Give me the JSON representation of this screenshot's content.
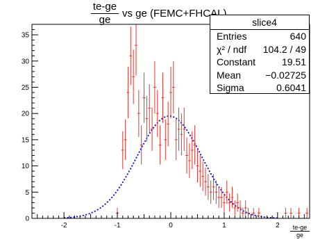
{
  "title": {
    "fraction_numerator": "te-ge",
    "fraction_denominator": "ge",
    "text": "vs ge (FEMC+FHCAL)"
  },
  "stats_box": {
    "title": "slice4",
    "rows": [
      {
        "key": "Entries",
        "value": "640"
      },
      {
        "key": "χ² / ndf",
        "value": "104.2 / 49"
      },
      {
        "key": "Constant",
        "value": "19.51"
      },
      {
        "key": "Mean",
        "value": "−0.02725"
      },
      {
        "key": "Sigma",
        "value": "0.6041"
      }
    ]
  },
  "x_axis_label": {
    "numerator": "te-ge",
    "denominator": "ge"
  },
  "colors": {
    "histogram": "#e8342a",
    "fit": "#0000e0",
    "axes": "#000000"
  },
  "chart_data": {
    "type": "histogram_with_fit",
    "xlim": [
      -2.6,
      2.6
    ],
    "ylim": [
      0,
      37
    ],
    "x_ticks": [
      -2,
      -1,
      0,
      1,
      2
    ],
    "y_ticks": [
      0,
      5,
      10,
      15,
      20,
      25,
      30,
      35
    ],
    "bin_width": 0.05,
    "bins": [
      {
        "x": -1.0,
        "y": 1
      },
      {
        "x": -0.9,
        "y": 13
      },
      {
        "x": -0.85,
        "y": 15
      },
      {
        "x": -0.8,
        "y": 24
      },
      {
        "x": -0.75,
        "y": 31
      },
      {
        "x": -0.7,
        "y": 27
      },
      {
        "x": -0.65,
        "y": 33
      },
      {
        "x": -0.6,
        "y": 20
      },
      {
        "x": -0.55,
        "y": 14
      },
      {
        "x": -0.5,
        "y": 23
      },
      {
        "x": -0.45,
        "y": 19
      },
      {
        "x": -0.4,
        "y": 21
      },
      {
        "x": -0.35,
        "y": 17
      },
      {
        "x": -0.3,
        "y": 25
      },
      {
        "x": -0.25,
        "y": 20
      },
      {
        "x": -0.2,
        "y": 14
      },
      {
        "x": -0.15,
        "y": 23
      },
      {
        "x": -0.1,
        "y": 15
      },
      {
        "x": -0.05,
        "y": 18
      },
      {
        "x": 0.0,
        "y": 24
      },
      {
        "x": 0.05,
        "y": 25
      },
      {
        "x": 0.1,
        "y": 15
      },
      {
        "x": 0.15,
        "y": 17
      },
      {
        "x": 0.2,
        "y": 16
      },
      {
        "x": 0.25,
        "y": 17
      },
      {
        "x": 0.3,
        "y": 12
      },
      {
        "x": 0.35,
        "y": 11
      },
      {
        "x": 0.4,
        "y": 13
      },
      {
        "x": 0.45,
        "y": 14
      },
      {
        "x": 0.5,
        "y": 10
      },
      {
        "x": 0.55,
        "y": 9
      },
      {
        "x": 0.6,
        "y": 8
      },
      {
        "x": 0.65,
        "y": 7
      },
      {
        "x": 0.7,
        "y": 6
      },
      {
        "x": 0.75,
        "y": 5
      },
      {
        "x": 0.8,
        "y": 6
      },
      {
        "x": 0.85,
        "y": 5
      },
      {
        "x": 0.9,
        "y": 4
      },
      {
        "x": 0.95,
        "y": 4
      },
      {
        "x": 1.0,
        "y": 3
      },
      {
        "x": 1.05,
        "y": 5
      },
      {
        "x": 1.1,
        "y": 3
      },
      {
        "x": 1.15,
        "y": 4
      },
      {
        "x": 1.2,
        "y": 2
      },
      {
        "x": 1.25,
        "y": 3
      },
      {
        "x": 1.3,
        "y": 2
      },
      {
        "x": 1.35,
        "y": 1
      },
      {
        "x": 1.4,
        "y": 2
      },
      {
        "x": 1.45,
        "y": 1
      },
      {
        "x": 1.55,
        "y": 1
      },
      {
        "x": 1.65,
        "y": 1
      },
      {
        "x": 2.15,
        "y": 1
      },
      {
        "x": 2.25,
        "y": 1
      },
      {
        "x": 2.4,
        "y": 1
      },
      {
        "x": 2.55,
        "y": 1
      }
    ],
    "fit": {
      "type": "gaussian",
      "constant": 19.51,
      "mean": -0.02725,
      "sigma": 0.6041,
      "x_range": [
        -2.0,
        2.0
      ]
    }
  }
}
